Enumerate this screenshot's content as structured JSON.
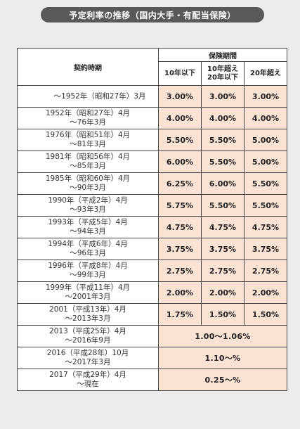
{
  "title": "予定利率の推移（国内大手・有配当保険）",
  "headers": {
    "period": "契約時期",
    "coverage": "保険期間",
    "col1": "10年以下",
    "col2_line1": "10年超え",
    "col2_line2": "20年以下",
    "col3": "20年超え"
  },
  "rows": [
    {
      "p1": "～1952年（昭和27年）3月",
      "p2": "",
      "r": [
        "3.00%",
        "3.00%",
        "3.00%"
      ]
    },
    {
      "p1": "1952年（昭和27年）4月",
      "p2": "～76年3月",
      "r": [
        "4.00%",
        "4.00%",
        "4.00%"
      ]
    },
    {
      "p1": "1976年（昭和51年）4月",
      "p2": "～81年3月",
      "r": [
        "5.50%",
        "5.50%",
        "5.00%"
      ]
    },
    {
      "p1": "1981年（昭和56年）4月",
      "p2": "～85年3月",
      "r": [
        "6.00%",
        "5.50%",
        "5.00%"
      ]
    },
    {
      "p1": "1985年（昭和60年）4月",
      "p2": "～90年3月",
      "r": [
        "6.25%",
        "6.00%",
        "5.50%"
      ]
    },
    {
      "p1": "1990年（平成2年）4月",
      "p2": "～93年3月",
      "r": [
        "5.75%",
        "5.50%",
        "5.50%"
      ]
    },
    {
      "p1": "1993年（平成5年）4月",
      "p2": "～94年3月",
      "r": [
        "4.75%",
        "4.75%",
        "4.75%"
      ]
    },
    {
      "p1": "1994年（平成6年）4月",
      "p2": "～96年3月",
      "r": [
        "3.75%",
        "3.75%",
        "3.75%"
      ]
    },
    {
      "p1": "1996年（平成8年）4月",
      "p2": "～99年3月",
      "r": [
        "2.75%",
        "2.75%",
        "2.75%"
      ]
    },
    {
      "p1": "1999年（平成11年）4月",
      "p2": "～2001年3月",
      "r": [
        "2.00%",
        "2.00%",
        "2.00%"
      ]
    },
    {
      "p1": "2001（平成13年）4月",
      "p2": "～2013年3月",
      "r": [
        "1.75%",
        "1.50%",
        "1.50%"
      ]
    }
  ],
  "merged_rows": [
    {
      "p1": "2013（平成25年）4月",
      "p2": "～2016年9月",
      "rate": "1.00～1.06%"
    },
    {
      "p1": "2016（平成28年）10月",
      "p2": "～2017年3月",
      "rate": "1.10～%"
    },
    {
      "p1": "2017（平成29年）4月",
      "p2": "～現在",
      "rate": "0.25～%"
    }
  ]
}
